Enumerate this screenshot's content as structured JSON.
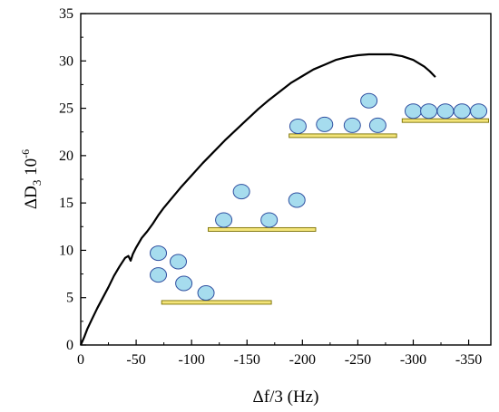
{
  "chart_data": {
    "type": "line",
    "xlabel": "Δf/3 (Hz)",
    "ylabel": {
      "main": "ΔD",
      "sub": "3",
      "mid": " 10",
      "sup": "-6"
    },
    "xlim": [
      0,
      -370
    ],
    "ylim": [
      0,
      35
    ],
    "x_ticks": [
      0,
      -50,
      -100,
      -150,
      -200,
      -250,
      -300,
      -350
    ],
    "x_tick_labels": [
      "0",
      "-50",
      "-100",
      "-150",
      "-200",
      "-250",
      "-300",
      "-350"
    ],
    "y_ticks": [
      0,
      5,
      10,
      15,
      20,
      25,
      30,
      35
    ],
    "y_tick_labels": [
      "0",
      "5",
      "10",
      "15",
      "20",
      "25",
      "30",
      "35"
    ],
    "grid": false,
    "legend": "none",
    "series": [
      {
        "color": "#000000",
        "x": [
          0,
          -3,
          -6,
          -10,
          -15,
          -20,
          -25,
          -30,
          -35,
          -40,
          -43,
          -45,
          -47,
          -50,
          -55,
          -60,
          -65,
          -70,
          -75,
          -80,
          -90,
          -100,
          -110,
          -120,
          -130,
          -140,
          -150,
          -160,
          -170,
          -180,
          -190,
          -200,
          -210,
          -220,
          -230,
          -240,
          -250,
          -260,
          -270,
          -280,
          -290,
          -300,
          -310,
          -315,
          -320
        ],
        "y": [
          0,
          0.8,
          1.7,
          2.7,
          3.9,
          5.0,
          6.1,
          7.3,
          8.3,
          9.2,
          9.4,
          8.9,
          9.6,
          10.3,
          11.3,
          12.0,
          12.8,
          13.7,
          14.5,
          15.2,
          16.6,
          17.9,
          19.2,
          20.4,
          21.6,
          22.7,
          23.8,
          24.9,
          25.9,
          26.8,
          27.7,
          28.4,
          29.1,
          29.6,
          30.1,
          30.4,
          30.6,
          30.7,
          30.7,
          30.7,
          30.5,
          30.1,
          29.4,
          28.9,
          28.3
        ]
      }
    ],
    "annotations": {
      "substrate_fill": "#f3e47a",
      "substrate_stroke": "#7a7000",
      "particle_fill": "#a6dcee",
      "particle_stroke": "#2f4fa0",
      "groups": [
        {
          "substrate": {
            "x0": -73,
            "x1": -172,
            "y": 4.5
          },
          "particles": [
            {
              "x": -70,
              "y": 9.7
            },
            {
              "x": -70,
              "y": 7.4
            },
            {
              "x": -88,
              "y": 8.8
            },
            {
              "x": -93,
              "y": 6.5
            },
            {
              "x": -113,
              "y": 5.5
            }
          ]
        },
        {
          "substrate": {
            "x0": -115,
            "x1": -212,
            "y": 12.2
          },
          "particles": [
            {
              "x": -129,
              "y": 13.2
            },
            {
              "x": -145,
              "y": 16.2
            },
            {
              "x": -170,
              "y": 13.2
            },
            {
              "x": -195,
              "y": 15.3
            }
          ]
        },
        {
          "substrate": {
            "x0": -188,
            "x1": -285,
            "y": 22.1
          },
          "particles": [
            {
              "x": -196,
              "y": 23.1
            },
            {
              "x": -220,
              "y": 23.3
            },
            {
              "x": -245,
              "y": 23.2
            },
            {
              "x": -260,
              "y": 25.8
            },
            {
              "x": -268,
              "y": 23.2
            }
          ]
        },
        {
          "substrate": {
            "x0": -290,
            "x1": -368,
            "y": 23.7
          },
          "particles": [
            {
              "x": -300,
              "y": 24.7
            },
            {
              "x": -314,
              "y": 24.7
            },
            {
              "x": -329,
              "y": 24.7
            },
            {
              "x": -344,
              "y": 24.7
            },
            {
              "x": -359,
              "y": 24.7
            }
          ]
        }
      ]
    }
  }
}
